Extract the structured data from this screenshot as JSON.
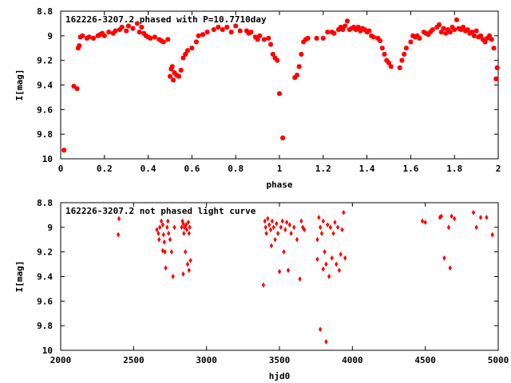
{
  "chart_data": [
    {
      "type": "scatter",
      "title": "162226-3207.2 phased with P=10.7710day",
      "xlabel": "phase",
      "ylabel": "I[mag]",
      "xlim": [
        0,
        2
      ],
      "ylim": [
        10,
        8.8
      ],
      "y_inverted": true,
      "grid": false,
      "marker": "star",
      "color": "#ff0000",
      "xticks": [
        "0",
        "0.2",
        "0.4",
        "0.6",
        "0.8",
        "1",
        "1.2",
        "1.4",
        "1.6",
        "1.8",
        "2"
      ],
      "yticks": [
        "8.8",
        "9",
        "9.2",
        "9.4",
        "9.6",
        "9.8",
        "10"
      ],
      "series": [
        {
          "points": [
            [
              0.015,
              9.93
            ],
            [
              0.06,
              9.41
            ],
            [
              0.075,
              9.43
            ],
            [
              0.08,
              9.1
            ],
            [
              0.085,
              9.08
            ],
            [
              0.09,
              9.01
            ],
            [
              0.1,
              9.0
            ],
            [
              0.12,
              9.02
            ],
            [
              0.13,
              9.01
            ],
            [
              0.15,
              9.02
            ],
            [
              0.17,
              9.0
            ],
            [
              0.18,
              8.99
            ],
            [
              0.19,
              8.98
            ],
            [
              0.2,
              9.0
            ],
            [
              0.22,
              8.97
            ],
            [
              0.24,
              8.98
            ],
            [
              0.25,
              8.96
            ],
            [
              0.27,
              8.95
            ],
            [
              0.28,
              8.93
            ],
            [
              0.3,
              8.96
            ],
            [
              0.31,
              8.92
            ],
            [
              0.33,
              8.94
            ],
            [
              0.35,
              8.9
            ],
            [
              0.36,
              8.97
            ],
            [
              0.37,
              8.93
            ],
            [
              0.38,
              8.98
            ],
            [
              0.39,
              9.0
            ],
            [
              0.4,
              9.01
            ],
            [
              0.41,
              9.02
            ],
            [
              0.43,
              9.01
            ],
            [
              0.45,
              9.03
            ],
            [
              0.46,
              9.04
            ],
            [
              0.47,
              9.05
            ],
            [
              0.49,
              9.03
            ],
            [
              0.5,
              9.33
            ],
            [
              0.505,
              9.27
            ],
            [
              0.51,
              9.25
            ],
            [
              0.515,
              9.36
            ],
            [
              0.52,
              9.3
            ],
            [
              0.53,
              9.32
            ],
            [
              0.54,
              9.33
            ],
            [
              0.55,
              9.28
            ],
            [
              0.56,
              9.18
            ],
            [
              0.57,
              9.15
            ],
            [
              0.58,
              9.12
            ],
            [
              0.6,
              9.1
            ],
            [
              0.62,
              9.05
            ],
            [
              0.63,
              9.0
            ],
            [
              0.65,
              8.99
            ],
            [
              0.67,
              8.97
            ],
            [
              0.7,
              8.95
            ],
            [
              0.72,
              8.93
            ],
            [
              0.74,
              8.95
            ],
            [
              0.76,
              8.93
            ],
            [
              0.78,
              8.97
            ],
            [
              0.8,
              8.92
            ],
            [
              0.82,
              8.96
            ],
            [
              0.85,
              8.96
            ],
            [
              0.86,
              8.98
            ],
            [
              0.87,
              8.97
            ],
            [
              0.89,
              9.01
            ],
            [
              0.9,
              9.03
            ],
            [
              0.91,
              9.0
            ],
            [
              0.93,
              9.03
            ],
            [
              0.95,
              9.02
            ],
            [
              0.96,
              9.07
            ],
            [
              0.97,
              9.15
            ],
            [
              0.98,
              9.18
            ],
            [
              0.99,
              9.2
            ],
            [
              1.0,
              9.47
            ],
            [
              1.015,
              9.83
            ],
            [
              1.07,
              9.34
            ],
            [
              1.08,
              9.32
            ],
            [
              1.09,
              9.25
            ],
            [
              1.1,
              9.15
            ],
            [
              1.11,
              9.05
            ],
            [
              1.12,
              9.03
            ],
            [
              1.13,
              9.02
            ],
            [
              1.17,
              9.02
            ],
            [
              1.2,
              9.02
            ],
            [
              1.22,
              8.97
            ],
            [
              1.24,
              8.97
            ],
            [
              1.25,
              8.98
            ],
            [
              1.27,
              8.95
            ],
            [
              1.28,
              8.93
            ],
            [
              1.29,
              8.95
            ],
            [
              1.3,
              8.92
            ],
            [
              1.31,
              8.88
            ],
            [
              1.32,
              8.95
            ],
            [
              1.33,
              8.94
            ],
            [
              1.34,
              8.93
            ],
            [
              1.35,
              8.95
            ],
            [
              1.36,
              8.93
            ],
            [
              1.37,
              8.96
            ],
            [
              1.38,
              8.94
            ],
            [
              1.39,
              8.95
            ],
            [
              1.4,
              8.97
            ],
            [
              1.41,
              8.96
            ],
            [
              1.42,
              9.0
            ],
            [
              1.43,
              9.01
            ],
            [
              1.45,
              9.02
            ],
            [
              1.46,
              9.04
            ],
            [
              1.47,
              9.1
            ],
            [
              1.48,
              9.15
            ],
            [
              1.49,
              9.2
            ],
            [
              1.5,
              9.22
            ],
            [
              1.51,
              9.25
            ],
            [
              1.55,
              9.26
            ],
            [
              1.56,
              9.2
            ],
            [
              1.57,
              9.15
            ],
            [
              1.58,
              9.1
            ],
            [
              1.6,
              9.05
            ],
            [
              1.61,
              9.0
            ],
            [
              1.62,
              9.01
            ],
            [
              1.63,
              9.0
            ],
            [
              1.64,
              9.02
            ],
            [
              1.66,
              8.97
            ],
            [
              1.67,
              8.98
            ],
            [
              1.68,
              8.99
            ],
            [
              1.69,
              8.97
            ],
            [
              1.7,
              8.95
            ],
            [
              1.72,
              8.93
            ],
            [
              1.73,
              8.91
            ],
            [
              1.74,
              8.97
            ],
            [
              1.75,
              8.94
            ],
            [
              1.76,
              8.98
            ],
            [
              1.77,
              8.95
            ],
            [
              1.78,
              8.97
            ],
            [
              1.79,
              8.93
            ],
            [
              1.8,
              8.95
            ],
            [
              1.81,
              8.87
            ],
            [
              1.82,
              8.94
            ],
            [
              1.83,
              8.95
            ],
            [
              1.84,
              8.93
            ],
            [
              1.85,
              8.96
            ],
            [
              1.86,
              8.95
            ],
            [
              1.87,
              8.98
            ],
            [
              1.88,
              8.97
            ],
            [
              1.89,
              9.0
            ],
            [
              1.9,
              8.96
            ],
            [
              1.91,
              9.01
            ],
            [
              1.92,
              9.0
            ],
            [
              1.93,
              9.03
            ],
            [
              1.94,
              9.05
            ],
            [
              1.95,
              9.02
            ],
            [
              1.96,
              9.0
            ],
            [
              1.97,
              9.03
            ],
            [
              1.98,
              9.1
            ],
            [
              1.99,
              9.35
            ],
            [
              1.995,
              9.26
            ]
          ]
        }
      ]
    },
    {
      "type": "scatter",
      "title": "162226-3207.2 not phased light curve",
      "xlabel": "hjd0",
      "ylabel": "I[mag]",
      "xlim": [
        2000,
        5000
      ],
      "ylim": [
        10,
        8.8
      ],
      "y_inverted": true,
      "grid": false,
      "marker": "diamond",
      "color": "#ff0000",
      "xticks": [
        "2000",
        "2500",
        "3000",
        "3500",
        "4000",
        "4500",
        "5000"
      ],
      "yticks": [
        "8.8",
        "9",
        "9.2",
        "9.4",
        "9.6",
        "9.8",
        "10"
      ],
      "series": [
        {
          "points": [
            [
              2400,
              8.93
            ],
            [
              2395,
              9.06
            ],
            [
              2660,
              9.02
            ],
            [
              2670,
              9.05
            ],
            [
              2675,
              9.1
            ],
            [
              2680,
              9.0
            ],
            [
              2690,
              8.95
            ],
            [
              2700,
              8.98
            ],
            [
              2705,
              9.06
            ],
            [
              2710,
              9.12
            ],
            [
              2715,
              9.2
            ],
            [
              2720,
              9.33
            ],
            [
              2730,
              9.0
            ],
            [
              2735,
              8.95
            ],
            [
              2740,
              9.05
            ],
            [
              2750,
              9.1
            ],
            [
              2760,
              9.2
            ],
            [
              2770,
              9.4
            ],
            [
              2780,
              9.0
            ],
            [
              2700,
              9.19
            ],
            [
              2830,
              9.0
            ],
            [
              2835,
              8.95
            ],
            [
              2840,
              8.97
            ],
            [
              2845,
              9.05
            ],
            [
              2850,
              9.0
            ],
            [
              2855,
              9.2
            ],
            [
              2860,
              8.98
            ],
            [
              2865,
              9.02
            ],
            [
              2870,
              9.3
            ],
            [
              2875,
              8.96
            ],
            [
              2880,
              9.05
            ],
            [
              2885,
              9.0
            ],
            [
              2890,
              9.27
            ],
            [
              2840,
              9.38
            ],
            [
              2880,
              9.35
            ],
            [
              3390,
              9.47
            ],
            [
              3400,
              8.95
            ],
            [
              3405,
              9.0
            ],
            [
              3410,
              9.05
            ],
            [
              3420,
              8.93
            ],
            [
              3430,
              8.98
            ],
            [
              3440,
              9.02
            ],
            [
              3445,
              9.15
            ],
            [
              3450,
              8.95
            ],
            [
              3460,
              9.0
            ],
            [
              3470,
              9.1
            ],
            [
              3480,
              8.97
            ],
            [
              3490,
              9.05
            ],
            [
              3500,
              9.36
            ],
            [
              3510,
              9.0
            ],
            [
              3520,
              8.95
            ],
            [
              3530,
              9.2
            ],
            [
              3540,
              9.02
            ],
            [
              3550,
              8.96
            ],
            [
              3560,
              9.35
            ],
            [
              3570,
              8.98
            ],
            [
              3580,
              9.05
            ],
            [
              3600,
              9.0
            ],
            [
              3620,
              9.1
            ],
            [
              3640,
              9.42
            ],
            [
              3650,
              8.95
            ],
            [
              3660,
              9.0
            ],
            [
              3670,
              9.02
            ],
            [
              3760,
              9.1
            ],
            [
              3770,
              8.92
            ],
            [
              3780,
              9.0
            ],
            [
              3790,
              9.05
            ],
            [
              3800,
              8.95
            ],
            [
              3810,
              9.2
            ],
            [
              3820,
              9.3
            ],
            [
              3830,
              8.98
            ],
            [
              3840,
              9.4
            ],
            [
              3850,
              9.0
            ],
            [
              3860,
              9.25
            ],
            [
              3870,
              9.05
            ],
            [
              3880,
              8.96
            ],
            [
              3890,
              9.3
            ],
            [
              3900,
              9.0
            ],
            [
              3910,
              9.35
            ],
            [
              3920,
              9.22
            ],
            [
              3930,
              9.02
            ],
            [
              3940,
              8.88
            ],
            [
              3950,
              9.25
            ],
            [
              3780,
              9.83
            ],
            [
              3820,
              9.93
            ],
            [
              3760,
              9.26
            ],
            [
              3800,
              9.34
            ],
            [
              4480,
              8.95
            ],
            [
              4500,
              8.96
            ],
            [
              4600,
              8.92
            ],
            [
              4610,
              8.91
            ],
            [
              4630,
              9.25
            ],
            [
              4660,
              9.0
            ],
            [
              4670,
              9.33
            ],
            [
              4680,
              8.91
            ],
            [
              4700,
              8.93
            ],
            [
              4830,
              8.88
            ],
            [
              4850,
              9.0
            ],
            [
              4880,
              8.92
            ],
            [
              4920,
              8.92
            ],
            [
              4960,
              9.06
            ]
          ]
        }
      ]
    }
  ]
}
